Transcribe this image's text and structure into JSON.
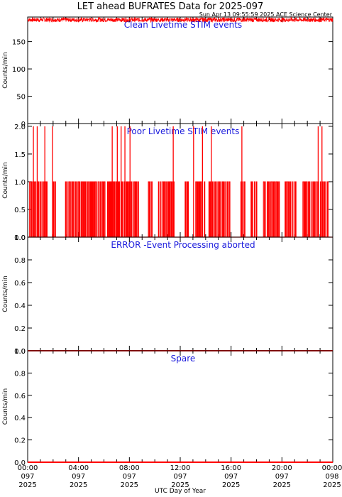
{
  "header": {
    "title": "LET ahead BUFRATES Data for 2025-097",
    "subtitle": "Sun Apr 13 09:55:59 2025 ACE Science Center"
  },
  "xaxis": {
    "label": "UTC Day of Year",
    "range_hours": [
      0,
      24
    ],
    "ticks": [
      {
        "hour": 0,
        "time": "00:00",
        "doy": "097",
        "year": "2025"
      },
      {
        "hour": 4,
        "time": "04:00",
        "doy": "097",
        "year": "2025"
      },
      {
        "hour": 8,
        "time": "08:00",
        "doy": "097",
        "year": "2025"
      },
      {
        "hour": 12,
        "time": "12:00",
        "doy": "097",
        "year": "2025"
      },
      {
        "hour": 16,
        "time": "16:00",
        "doy": "097",
        "year": "2025"
      },
      {
        "hour": 20,
        "time": "20:00",
        "doy": "097",
        "year": "2025"
      },
      {
        "hour": 24,
        "time": "00:00",
        "doy": "098",
        "year": "2025"
      }
    ]
  },
  "colors": {
    "series": "#ff0000",
    "panel_label": "#1a1adc",
    "axes": "#000000"
  },
  "chart_data": [
    {
      "type": "line",
      "title": "Clean Livetime STIM events",
      "ylabel": "Counts/min",
      "ylim": [
        0,
        195
      ],
      "yticks": [
        0,
        50,
        100,
        150
      ],
      "ytick_labels": [
        "0",
        "50",
        "100",
        "150"
      ],
      "series": [
        {
          "baseline": 190,
          "noise_min": 186,
          "noise_max": 194
        }
      ]
    },
    {
      "type": "line",
      "title": "Poor Livetime STIM events",
      "ylabel": "Counts/min",
      "ylim": [
        0,
        2.05
      ],
      "yticks": [
        0,
        0.5,
        1.0,
        1.5,
        2.0
      ],
      "ytick_labels": [
        "0.0",
        "0.5",
        "1.0",
        "1.5",
        "2.0"
      ],
      "series": [
        {
          "level": 1,
          "value_2_hours": [
            0.45,
            0.75,
            1.35,
            1.95,
            6.65,
            7.05,
            7.35,
            7.65,
            8.05,
            11.45,
            13.05,
            13.75,
            14.45,
            16.85,
            22.85,
            23.15
          ],
          "gap_hours": [
            [
              1.55,
              1.95
            ],
            [
              2.25,
              2.85
            ],
            [
              6.05,
              6.25
            ],
            [
              8.75,
              9.35
            ],
            [
              9.75,
              10.2
            ],
            [
              11.55,
              12.35
            ],
            [
              12.65,
              13.1
            ],
            [
              13.95,
              14.25
            ],
            [
              15.95,
              16.65
            ],
            [
              17.05,
              17.45
            ],
            [
              18.05,
              18.5
            ],
            [
              19.85,
              20.2
            ],
            [
              21.1,
              21.5
            ],
            [
              23.7,
              23.95
            ]
          ]
        }
      ]
    },
    {
      "type": "line",
      "title": "ERROR -Event Processing aborted",
      "ylabel": "Counts/min",
      "ylim": [
        0,
        1.0
      ],
      "yticks": [
        0,
        0.2,
        0.4,
        0.6,
        0.8,
        1.0
      ],
      "ytick_labels": [
        "0.0",
        "0.2",
        "0.4",
        "0.6",
        "0.8",
        "1.0"
      ],
      "series": [
        {
          "x": [
            0,
            24
          ],
          "y": [
            0,
            0
          ]
        }
      ]
    },
    {
      "type": "line",
      "title": "Spare",
      "ylabel": "Counts/min",
      "ylim": [
        0,
        1.0
      ],
      "yticks": [
        0,
        0.2,
        0.4,
        0.6,
        0.8,
        1.0
      ],
      "ytick_labels": [
        "0.0",
        "0.2",
        "0.4",
        "0.6",
        "0.8",
        "1.0"
      ],
      "series": [
        {
          "x": [
            0,
            24
          ],
          "y": [
            0,
            0
          ]
        }
      ]
    }
  ]
}
